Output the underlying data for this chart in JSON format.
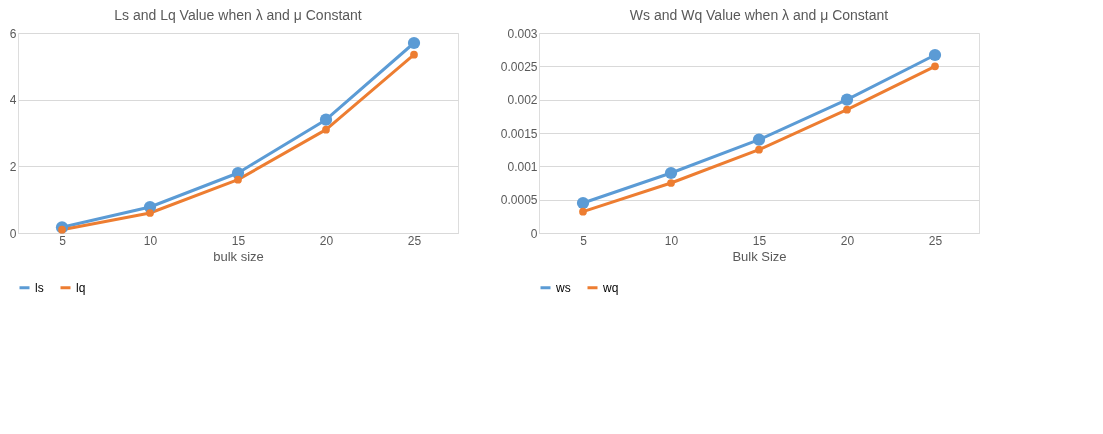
{
  "chart_data": [
    {
      "type": "line",
      "title": "Ls and Lq Value when λ and μ Constant",
      "xlabel": "bulk size",
      "categories": [
        "5",
        "10",
        "15",
        "20",
        "25"
      ],
      "series": [
        {
          "name": "ls",
          "color": "#5b9bd5",
          "values": [
            0.17,
            0.78,
            1.8,
            3.4,
            5.7
          ]
        },
        {
          "name": "lq",
          "color": "#ed7d31",
          "values": [
            0.1,
            0.6,
            1.6,
            3.1,
            5.35
          ]
        }
      ],
      "ylim": [
        0,
        6
      ],
      "yticks": [
        0,
        2,
        4,
        6
      ],
      "grid": "y",
      "legend": "bottom",
      "marker": "circle",
      "line_style": "solid"
    },
    {
      "type": "line",
      "title": "Ws and Wq Value when λ and μ Constant",
      "xlabel": "Bulk Size",
      "categories": [
        "5",
        "10",
        "15",
        "20",
        "25"
      ],
      "series": [
        {
          "name": "ws",
          "color": "#5b9bd5",
          "values": [
            0.00045,
            0.0009,
            0.0014,
            0.002,
            0.00267
          ]
        },
        {
          "name": "wq",
          "color": "#ed7d31",
          "values": [
            0.00032,
            0.00075,
            0.00125,
            0.00185,
            0.0025
          ]
        }
      ],
      "ylim": [
        0,
        0.003
      ],
      "yticks": [
        0,
        0.0005,
        0.001,
        0.0015,
        0.002,
        0.0025,
        0.003
      ],
      "grid": "y",
      "legend": "bottom",
      "marker": "circle",
      "line_style": "solid"
    }
  ]
}
